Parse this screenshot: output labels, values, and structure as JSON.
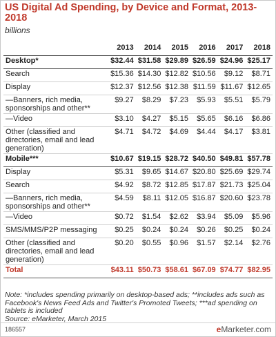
{
  "chart_data": {
    "type": "table",
    "title": "US Digital Ad Spending, by Device and Format, 2013-2018",
    "subtitle": "billions",
    "columns": [
      "2013",
      "2014",
      "2015",
      "2016",
      "2017",
      "2018"
    ],
    "rows": [
      {
        "label": "Desktop*",
        "style": "group",
        "values": [
          "$32.44",
          "$31.58",
          "$29.89",
          "$26.59",
          "$24.96",
          "$25.17"
        ]
      },
      {
        "label": "Search",
        "style": "",
        "values": [
          "$15.36",
          "$14.30",
          "$12.82",
          "$10.56",
          "$9.12",
          "$8.71"
        ]
      },
      {
        "label": "Display",
        "style": "",
        "values": [
          "$12.37",
          "$12.56",
          "$12.38",
          "$11.59",
          "$11.67",
          "$12.65"
        ]
      },
      {
        "label": "—Banners, rich media, sponsorships and other**",
        "style": "multi",
        "values": [
          "$9.27",
          "$8.29",
          "$7.23",
          "$5.93",
          "$5.51",
          "$5.79"
        ]
      },
      {
        "label": "—Video",
        "style": "",
        "values": [
          "$3.10",
          "$4.27",
          "$5.15",
          "$5.65",
          "$6.16",
          "$6.86"
        ]
      },
      {
        "label": "Other (classified and directories, email and lead generation)",
        "style": "multi",
        "values": [
          "$4.71",
          "$4.72",
          "$4.69",
          "$4.44",
          "$4.17",
          "$3.81"
        ]
      },
      {
        "label": "Mobile***",
        "style": "group",
        "values": [
          "$10.67",
          "$19.15",
          "$28.72",
          "$40.50",
          "$49.81",
          "$57.78"
        ]
      },
      {
        "label": "Display",
        "style": "",
        "values": [
          "$5.31",
          "$9.65",
          "$14.67",
          "$20.80",
          "$25.69",
          "$29.74"
        ]
      },
      {
        "label": "Search",
        "style": "",
        "values": [
          "$4.92",
          "$8.72",
          "$12.85",
          "$17.87",
          "$21.73",
          "$25.04"
        ]
      },
      {
        "label": "—Banners, rich media, sponsorships and other**",
        "style": "multi",
        "values": [
          "$4.59",
          "$8.11",
          "$12.05",
          "$16.87",
          "$20.60",
          "$23.78"
        ]
      },
      {
        "label": "—Video",
        "style": "",
        "values": [
          "$0.72",
          "$1.54",
          "$2.62",
          "$3.94",
          "$5.09",
          "$5.96"
        ]
      },
      {
        "label": "SMS/MMS/P2P messaging",
        "style": "",
        "values": [
          "$0.25",
          "$0.24",
          "$0.24",
          "$0.26",
          "$0.25",
          "$0.24"
        ]
      },
      {
        "label": "Other (classified and directories, email and lead generation)",
        "style": "multi",
        "values": [
          "$0.20",
          "$0.55",
          "$0.96",
          "$1.57",
          "$2.14",
          "$2.76"
        ]
      },
      {
        "label": "Total",
        "style": "total",
        "values": [
          "$43.11",
          "$50.73",
          "$58.61",
          "$67.09",
          "$74.77",
          "$82.95"
        ]
      }
    ],
    "note": "Note: *includes spending primarily on desktop-based ads; **includes ads such as Facebook's News Feed Ads and Twitter's Promoted Tweets; ***ad spending on tablets is included",
    "source": "Source: eMarketer, March 2015"
  },
  "footer": {
    "chart_id": "186557",
    "brand_e": "e",
    "brand_rest": "Marketer.com"
  },
  "colors": {
    "accent": "#c0392b"
  }
}
